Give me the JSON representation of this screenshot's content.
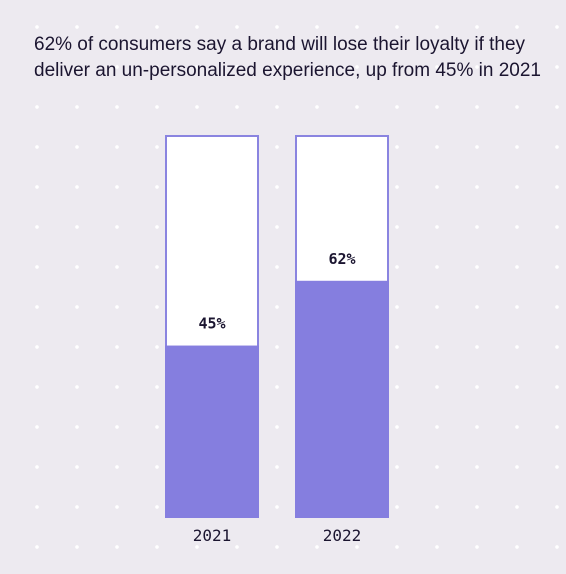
{
  "title": "62% of consumers say a brand will lose their loyalty if they deliver an un-personalized experience, up from 45% in 2021",
  "colors": {
    "background": "#edeaf0",
    "bar_fill": "#857edf",
    "bar_outline": "#8a84e0",
    "text": "#1b1530"
  },
  "chart_data": {
    "type": "bar",
    "title": "62% of consumers say a brand will lose their loyalty if they deliver an un-personalized experience, up from 45% in 2021",
    "categories": [
      "2021",
      "2022"
    ],
    "values": [
      45,
      62
    ],
    "data_labels": [
      "45%",
      "62%"
    ],
    "ylim": [
      0,
      100
    ],
    "xlabel": "",
    "ylabel": "",
    "grid": false,
    "legend": "none"
  }
}
